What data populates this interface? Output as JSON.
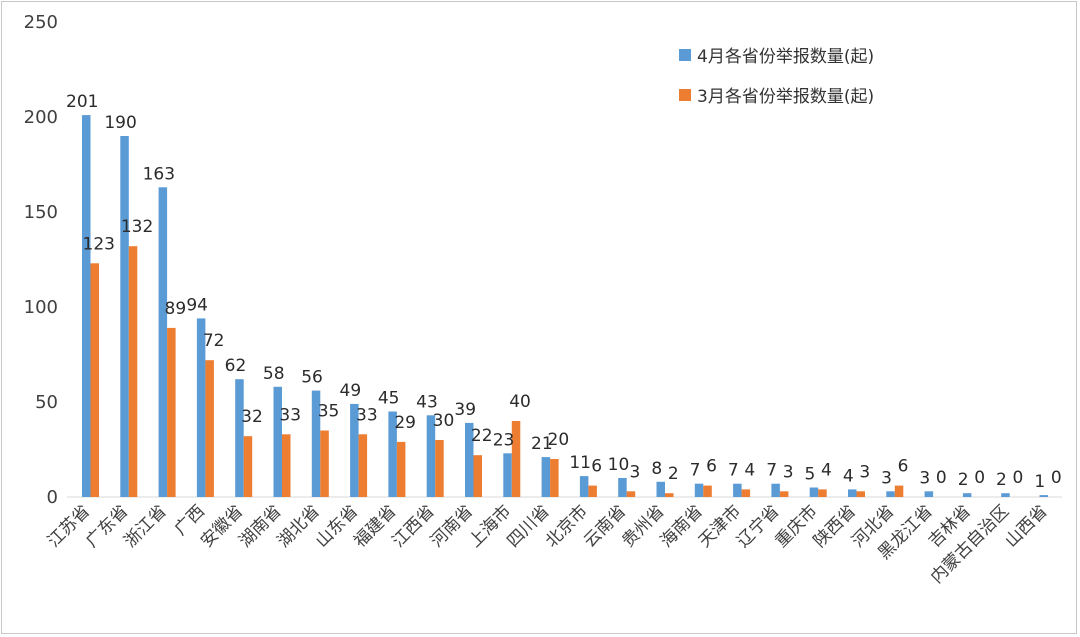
{
  "chart_data": {
    "type": "bar",
    "title": "",
    "xlabel": "",
    "ylabel": "",
    "ylim": [
      0,
      250
    ],
    "yticks": [
      0,
      50,
      100,
      150,
      200,
      250
    ],
    "grid": false,
    "legend_position": "top-right",
    "categories": [
      "江苏省",
      "广东省",
      "浙江省",
      "广西",
      "安徽省",
      "湖南省",
      "湖北省",
      "山东省",
      "福建省",
      "江西省",
      "河南省",
      "上海市",
      "四川省",
      "北京市",
      "云南省",
      "贵州省",
      "海南省",
      "天津市",
      "辽宁省",
      "重庆市",
      "陕西省",
      "河北省",
      "黑龙江省",
      "吉林省",
      "内蒙古自治区",
      "山西省"
    ],
    "series": [
      {
        "name": "4月各省份举报数量(起)",
        "color": "#5b9bd5",
        "values": [
          201,
          190,
          163,
          94,
          62,
          58,
          56,
          49,
          45,
          43,
          39,
          23,
          21,
          11,
          10,
          8,
          7,
          7,
          7,
          5,
          4,
          3,
          3,
          2,
          2,
          1
        ]
      },
      {
        "name": "3月各省份举报数量(起)",
        "color": "#ed7d31",
        "values": [
          123,
          132,
          89,
          72,
          32,
          33,
          35,
          33,
          29,
          30,
          22,
          40,
          20,
          6,
          3,
          2,
          6,
          4,
          3,
          4,
          3,
          6,
          0,
          0,
          0,
          0
        ]
      }
    ]
  }
}
